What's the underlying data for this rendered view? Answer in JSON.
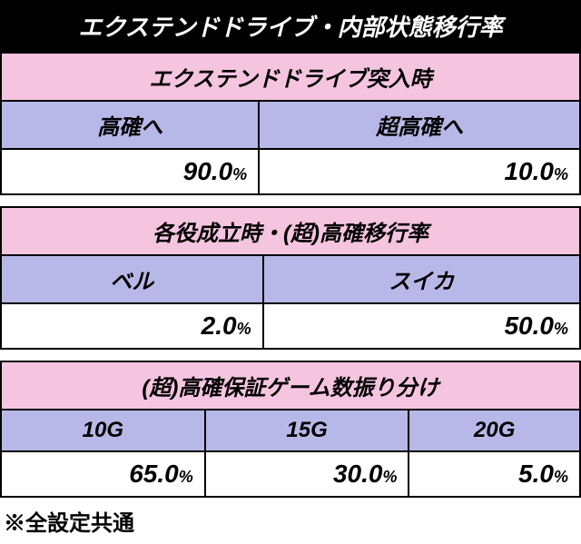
{
  "title": "エクステンドドライブ・内部状態移行率",
  "section1": {
    "header": "エクステンドドライブ突入時",
    "cols": [
      "高確へ",
      "超高確へ"
    ],
    "values": [
      "90.0",
      "10.0"
    ]
  },
  "section2": {
    "header": "各役成立時・(超)高確移行率",
    "cols": [
      "ベル",
      "スイカ"
    ],
    "values": [
      "2.0",
      "50.0"
    ]
  },
  "section3": {
    "header": "(超)高確保証ゲーム数振り分け",
    "cols": [
      "10G",
      "15G",
      "20G"
    ],
    "values": [
      "65.0",
      "30.0",
      "5.0"
    ]
  },
  "percent": "%",
  "footnote": "※全設定共通",
  "colors": {
    "title_bg": "#000000",
    "title_fg": "#ffffff",
    "section_bg": "#f5c5e0",
    "col_bg": "#b8b8e8",
    "border": "#000000"
  }
}
